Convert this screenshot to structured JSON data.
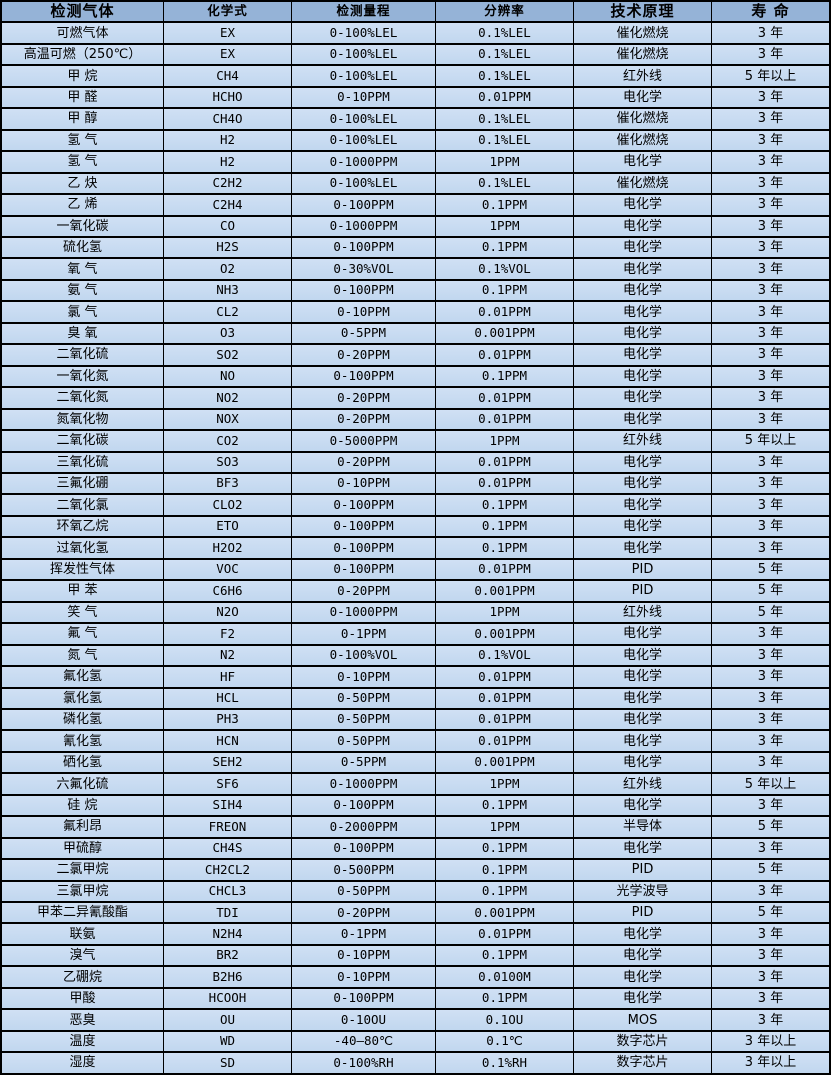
{
  "colors": {
    "header_bg": "#95b3d7",
    "row_bg": "#c5d9f1",
    "border": "#000000",
    "text": "#000000"
  },
  "table": {
    "columns": [
      "检测气体",
      "化学式",
      "检测量程",
      "分辨率",
      "技术原理",
      "寿 命"
    ],
    "rows": [
      [
        "可燃气体",
        "EX",
        "0-100%LEL",
        "0.1%LEL",
        "催化燃烧",
        "3 年"
      ],
      [
        "高温可燃（250℃）",
        "EX",
        "0-100%LEL",
        "0.1%LEL",
        "催化燃烧",
        "3 年"
      ],
      [
        "甲 烷",
        "CH4",
        "0-100%LEL",
        "0.1%LEL",
        "红外线",
        "5 年以上"
      ],
      [
        "甲 醛",
        "HCHO",
        "0-10PPM",
        "0.01PPM",
        "电化学",
        "3 年"
      ],
      [
        "甲 醇",
        "CH4O",
        "0-100%LEL",
        "0.1%LEL",
        "催化燃烧",
        "3 年"
      ],
      [
        "氢 气",
        "H2",
        "0-100%LEL",
        "0.1%LEL",
        "催化燃烧",
        "3 年"
      ],
      [
        "氢 气",
        "H2",
        "0-1000PPM",
        "1PPM",
        "电化学",
        "3 年"
      ],
      [
        "乙 炔",
        "C2H2",
        "0-100%LEL",
        "0.1%LEL",
        "催化燃烧",
        "3 年"
      ],
      [
        "乙 烯",
        "C2H4",
        "0-100PPM",
        "0.1PPM",
        "电化学",
        "3 年"
      ],
      [
        "一氧化碳",
        "CO",
        "0-1000PPM",
        "1PPM",
        "电化学",
        "3 年"
      ],
      [
        "硫化氢",
        "H2S",
        "0-100PPM",
        "0.1PPM",
        "电化学",
        "3 年"
      ],
      [
        "氧 气",
        "O2",
        "0-30%VOL",
        "0.1%VOL",
        "电化学",
        "3 年"
      ],
      [
        "氨 气",
        "NH3",
        "0-100PPM",
        "0.1PPM",
        "电化学",
        "3 年"
      ],
      [
        "氯 气",
        "CL2",
        "0-10PPM",
        "0.01PPM",
        "电化学",
        "3 年"
      ],
      [
        "臭 氧",
        "O3",
        "0-5PPM",
        "0.001PPM",
        "电化学",
        "3 年"
      ],
      [
        "二氧化硫",
        "SO2",
        "0-20PPM",
        "0.01PPM",
        "电化学",
        "3 年"
      ],
      [
        "一氧化氮",
        "NO",
        "0-100PPM",
        "0.1PPM",
        "电化学",
        "3 年"
      ],
      [
        "二氧化氮",
        "NO2",
        "0-20PPM",
        "0.01PPM",
        "电化学",
        "3 年"
      ],
      [
        "氮氧化物",
        "NOX",
        "0-20PPM",
        "0.01PPM",
        "电化学",
        "3 年"
      ],
      [
        "二氧化碳",
        "CO2",
        "0-5000PPM",
        "1PPM",
        "红外线",
        "5 年以上"
      ],
      [
        "三氧化硫",
        "SO3",
        "0-20PPM",
        "0.01PPM",
        "电化学",
        "3 年"
      ],
      [
        "三氟化硼",
        "BF3",
        "0-10PPM",
        "0.01PPM",
        "电化学",
        "3 年"
      ],
      [
        "二氧化氯",
        "CLO2",
        "0-100PPM",
        "0.1PPM",
        "电化学",
        "3 年"
      ],
      [
        "环氧乙烷",
        "ETO",
        "0-100PPM",
        "0.1PPM",
        "电化学",
        "3 年"
      ],
      [
        "过氧化氢",
        "H2O2",
        "0-100PPM",
        "0.1PPM",
        "电化学",
        "3 年"
      ],
      [
        "挥发性气体",
        "VOC",
        "0-100PPM",
        "0.01PPM",
        "PID",
        "5 年"
      ],
      [
        "甲 苯",
        "C6H6",
        "0-20PPM",
        "0.001PPM",
        "PID",
        "5 年"
      ],
      [
        "笑 气",
        "N2O",
        "0-1000PPM",
        "1PPM",
        "红外线",
        "5 年"
      ],
      [
        "氟 气",
        "F2",
        "0-1PPM",
        "0.001PPM",
        "电化学",
        "3 年"
      ],
      [
        "氮 气",
        "N2",
        "0-100%VOL",
        "0.1%VOL",
        "电化学",
        "3 年"
      ],
      [
        "氟化氢",
        "HF",
        "0-10PPM",
        "0.01PPM",
        "电化学",
        "3 年"
      ],
      [
        "氯化氢",
        "HCL",
        "0-50PPM",
        "0.01PPM",
        "电化学",
        "3 年"
      ],
      [
        "磷化氢",
        "PH3",
        "0-50PPM",
        "0.01PPM",
        "电化学",
        "3 年"
      ],
      [
        "氰化氢",
        "HCN",
        "0-50PPM",
        "0.01PPM",
        "电化学",
        "3 年"
      ],
      [
        "硒化氢",
        "SEH2",
        "0-5PPM",
        "0.001PPM",
        "电化学",
        "3 年"
      ],
      [
        "六氟化硫",
        "SF6",
        "0-1000PPM",
        "1PPM",
        "红外线",
        "5 年以上"
      ],
      [
        "硅 烷",
        "SIH4",
        "0-100PPM",
        "0.1PPM",
        "电化学",
        "3 年"
      ],
      [
        "氟利昂",
        "FREON",
        "0-2000PPM",
        "1PPM",
        "半导体",
        "5 年"
      ],
      [
        "甲硫醇",
        "CH4S",
        "0-100PPM",
        "0.1PPM",
        "电化学",
        "3 年"
      ],
      [
        "二氯甲烷",
        "CH2CL2",
        "0-500PPM",
        "0.1PPM",
        "PID",
        "5 年"
      ],
      [
        "三氯甲烷",
        "CHCL3",
        "0-50PPM",
        "0.1PPM",
        "光学波导",
        "3 年"
      ],
      [
        "甲苯二异氰酸酯",
        "TDI",
        "0-20PPM",
        "0.001PPM",
        "PID",
        "5 年"
      ],
      [
        "联氨",
        "N2H4",
        "0-1PPM",
        "0.01PPM",
        "电化学",
        "3 年"
      ],
      [
        "溴气",
        "BR2",
        "0-10PPM",
        "0.1PPM",
        "电化学",
        "3 年"
      ],
      [
        "乙硼烷",
        "B2H6",
        "0-10PPM",
        "0.0100M",
        "电化学",
        "3 年"
      ],
      [
        "甲酸",
        "HCOOH",
        "0-100PPM",
        "0.1PPM",
        "电化学",
        "3 年"
      ],
      [
        "恶臭",
        "OU",
        "0-10OU",
        "0.1OU",
        "MOS",
        "3 年"
      ],
      [
        "温度",
        "WD",
        "-40—80℃",
        "0.1℃",
        "数字芯片",
        "3 年以上"
      ],
      [
        "湿度",
        "SD",
        "0-100%RH",
        "0.1%RH",
        "数字芯片",
        "3 年以上"
      ]
    ]
  }
}
